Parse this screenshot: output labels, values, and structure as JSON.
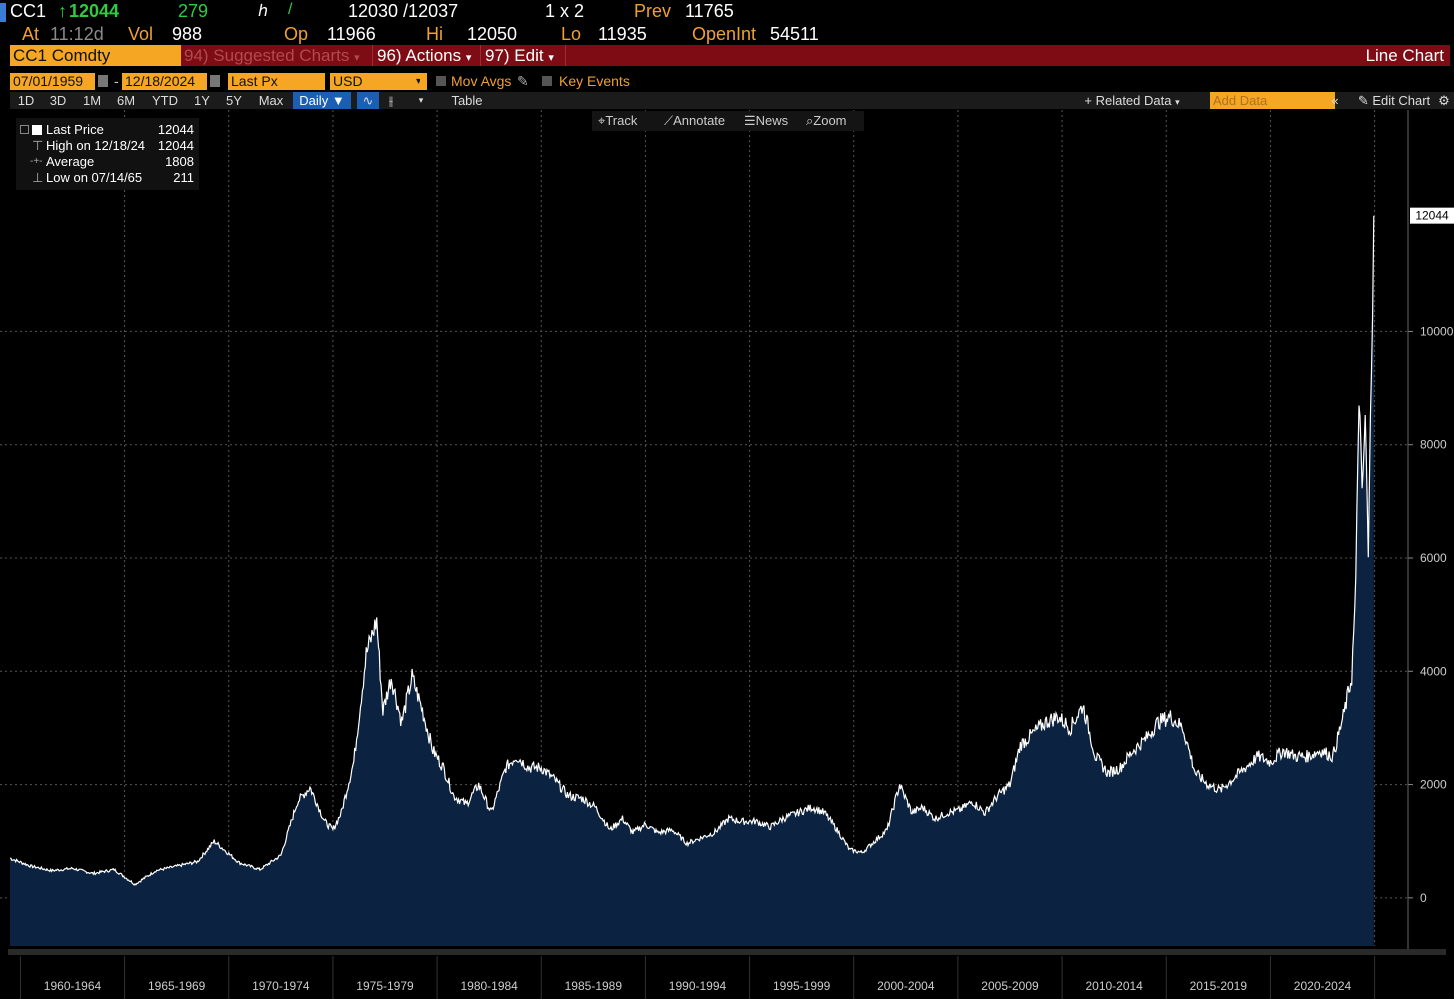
{
  "quote": {
    "ticker": "CC1",
    "last": "12044",
    "change": "279",
    "bid_ask": "12030 /12037",
    "size": "1 x 2",
    "prev_label": "Prev",
    "prev": "11765",
    "at_label": "At",
    "time": "11:12d",
    "vol_label": "Vol",
    "vol": "988",
    "op_label": "Op",
    "op": "11966",
    "hi_label": "Hi",
    "hi": "12050",
    "lo_label": "Lo",
    "lo": "11935",
    "openint_label": "OpenInt",
    "openint": "54511"
  },
  "cmdbar": {
    "security": "CC1 Comdty",
    "suggested": "94) Suggested Charts",
    "actions": "96) Actions",
    "edit": "97) Edit",
    "chart_type": "Line Chart"
  },
  "settings": {
    "start_date": "07/01/1959",
    "end_date": "12/18/2024",
    "field": "Last Px",
    "currency": "USD",
    "mov_avgs": "Mov Avgs",
    "key_events": "Key Events"
  },
  "periods": [
    "1D",
    "3D",
    "1M",
    "6M",
    "YTD",
    "1Y",
    "5Y",
    "Max"
  ],
  "frequency": "Daily",
  "table_label": "Table",
  "related_data": "+ Related Data",
  "add_data_placeholder": "Add Data",
  "edit_chart": "Edit Chart",
  "tools": {
    "track": "Track",
    "annotate": "Annotate",
    "news": "News",
    "zoom": "Zoom"
  },
  "legend": {
    "rows": [
      {
        "name": "Last Price",
        "value": "12044"
      },
      {
        "name": "High on 12/18/24",
        "value": "12044"
      },
      {
        "name": "Average",
        "value": "1808"
      },
      {
        "name": "Low on 07/14/65",
        "value": "211"
      }
    ]
  },
  "colors": {
    "accent": "#f5a623",
    "bar_red": "#7d0c14",
    "fill": "#0b2340",
    "line": "#ffffff",
    "up": "#2ecc40"
  },
  "chart_data": {
    "type": "area",
    "title": "",
    "xlabel": "",
    "ylabel": "",
    "ylim": [
      -850,
      12850
    ],
    "xlim": [
      1959.5,
      2025.5
    ],
    "y_ticks": [
      0,
      2000,
      4000,
      6000,
      8000,
      10000
    ],
    "last_label": "12044",
    "x_tick_labels": [
      "1960-1964",
      "1965-1969",
      "1970-1974",
      "1975-1979",
      "1980-1984",
      "1985-1989",
      "1990-1994",
      "1995-1999",
      "2000-2004",
      "2005-2009",
      "2010-2014",
      "2015-2019",
      "2020-2024"
    ],
    "grid": true,
    "series": [
      {
        "x": [
          1959.5,
          1960.5,
          1961.5,
          1962.5,
          1963.5,
          1964.5,
          1965.5,
          1966.5,
          1967.5,
          1968.5,
          1969.3,
          1970.0,
          1970.5,
          1971.5,
          1972.5,
          1973.3,
          1973.9,
          1974.2,
          1974.6,
          1975.0,
          1975.4,
          1976.0,
          1976.6,
          1977.1,
          1977.4,
          1977.8,
          1978.3,
          1978.8,
          1979.3,
          1979.8,
          1980.3,
          1980.8,
          1981.4,
          1982.0,
          1982.6,
          1983.3,
          1983.8,
          1984.4,
          1985.0,
          1985.6,
          1986.3,
          1987.0,
          1987.6,
          1988.3,
          1988.9,
          1989.4,
          1990.0,
          1990.6,
          1991.3,
          1992.0,
          1992.6,
          1993.3,
          1994.0,
          1994.6,
          1995.3,
          1996.0,
          1996.6,
          1997.3,
          1998.0,
          1998.6,
          1999.2,
          1999.8,
          2000.4,
          2001.0,
          2001.6,
          2002.2,
          2002.8,
          2003.3,
          2003.9,
          2004.5,
          2005.1,
          2005.7,
          2006.3,
          2006.9,
          2007.5,
          2008.0,
          2008.6,
          2009.2,
          2009.8,
          2010.4,
          2011.0,
          2011.6,
          2012.2,
          2012.8,
          2013.4,
          2014.0,
          2014.6,
          2015.2,
          2015.8,
          2016.4,
          2017.0,
          2017.6,
          2018.2,
          2018.8,
          2019.4,
          2020.0,
          2020.6,
          2021.2,
          2021.8,
          2022.4,
          2023.0,
          2023.5,
          2023.9,
          2024.1,
          2024.25,
          2024.4,
          2024.55,
          2024.7,
          2024.85,
          2024.96
        ],
        "values": [
          700,
          560,
          480,
          520,
          430,
          500,
          240,
          480,
          560,
          640,
          1000,
          780,
          620,
          500,
          750,
          1700,
          1950,
          1700,
          1350,
          1200,
          1500,
          2400,
          4300,
          4900,
          3300,
          3900,
          3100,
          3900,
          3300,
          2600,
          2300,
          1800,
          1650,
          2000,
          1500,
          2300,
          2500,
          2300,
          2300,
          2100,
          1800,
          1750,
          1600,
          1200,
          1400,
          1150,
          1300,
          1150,
          1200,
          960,
          1050,
          1150,
          1400,
          1350,
          1350,
          1250,
          1400,
          1500,
          1600,
          1500,
          1200,
          850,
          800,
          1000,
          1200,
          2000,
          1500,
          1600,
          1400,
          1500,
          1550,
          1700,
          1500,
          1800,
          2000,
          2700,
          2900,
          3100,
          3200,
          3000,
          3400,
          2500,
          2200,
          2300,
          2600,
          2800,
          3100,
          3200,
          3000,
          2200,
          2000,
          1900,
          2100,
          2300,
          2500,
          2400,
          2600,
          2500,
          2500,
          2600,
          2500,
          3200,
          3900,
          5500,
          9000,
          7000,
          8500,
          6000,
          9500,
          12044
        ]
      }
    ]
  }
}
